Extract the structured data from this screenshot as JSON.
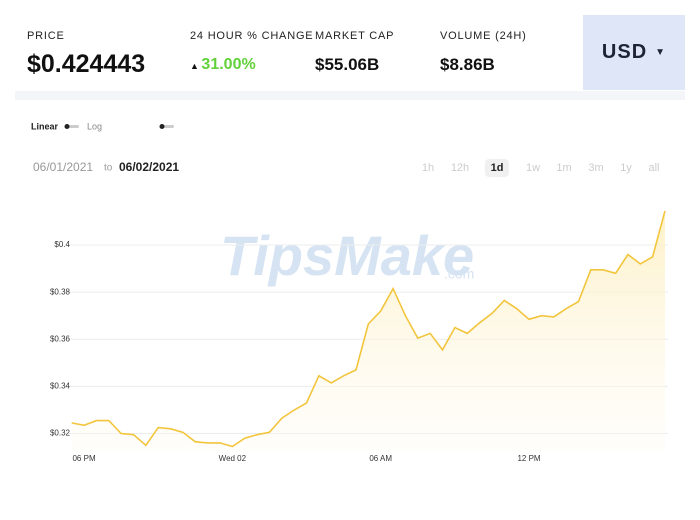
{
  "stats": [
    {
      "label": "PRICE",
      "value": "$0.424443"
    },
    {
      "label": "24 HOUR % CHANGE",
      "value": "31.00%"
    },
    {
      "label": "MARKET CAP",
      "value": "$55.06B"
    },
    {
      "label": "VOLUME (24H)",
      "value": "$8.86B"
    }
  ],
  "currency": "USD",
  "scale_options": [
    "Linear",
    "Log"
  ],
  "date_from": "06/01/2021",
  "date_sep": "to",
  "date_to": "06/02/2021",
  "ranges": [
    "1h",
    "12h",
    "1d",
    "1w",
    "1m",
    "3m",
    "1y",
    "all"
  ],
  "watermark": "TipsMake",
  "watermark_suffix": ".com",
  "chart_data": {
    "type": "area",
    "color": "#f2c53d",
    "categories": [
      null,
      "06 PM",
      null,
      null,
      null,
      null,
      null,
      null,
      null,
      null,
      null,
      null,
      null,
      "Wed 02",
      null,
      null,
      null,
      null,
      null,
      null,
      null,
      null,
      null,
      null,
      null,
      "06 AM",
      null,
      null,
      null,
      null,
      null,
      null,
      null,
      null,
      null,
      null,
      null,
      "12 PM",
      null,
      null,
      null,
      null,
      null,
      null,
      null,
      null,
      null,
      null,
      null
    ],
    "values": [
      0.3245,
      0.3235,
      0.3255,
      0.3255,
      0.32,
      0.3195,
      0.315,
      0.3225,
      0.322,
      0.3205,
      0.3165,
      0.316,
      0.316,
      0.3145,
      0.318,
      0.3195,
      0.3205,
      0.3265,
      0.33,
      0.333,
      0.3445,
      0.3415,
      0.3445,
      0.347,
      0.3665,
      0.372,
      0.3815,
      0.37,
      0.3605,
      0.3625,
      0.3555,
      0.365,
      0.3625,
      0.367,
      0.371,
      0.3765,
      0.373,
      0.3685,
      0.37,
      0.3695,
      0.373,
      0.376,
      0.3895,
      0.3895,
      0.388,
      0.396,
      0.392,
      0.395,
      0.4145
    ],
    "ylim": [
      0.313,
      0.417
    ],
    "yticks": [
      {
        "value": 0.32,
        "label": "$0.32"
      },
      {
        "value": 0.34,
        "label": "$0.34"
      },
      {
        "value": 0.36,
        "label": "$0.36"
      },
      {
        "value": 0.38,
        "label": "$0.38"
      },
      {
        "value": 0.4,
        "label": "$0.4"
      }
    ],
    "grid": true
  }
}
